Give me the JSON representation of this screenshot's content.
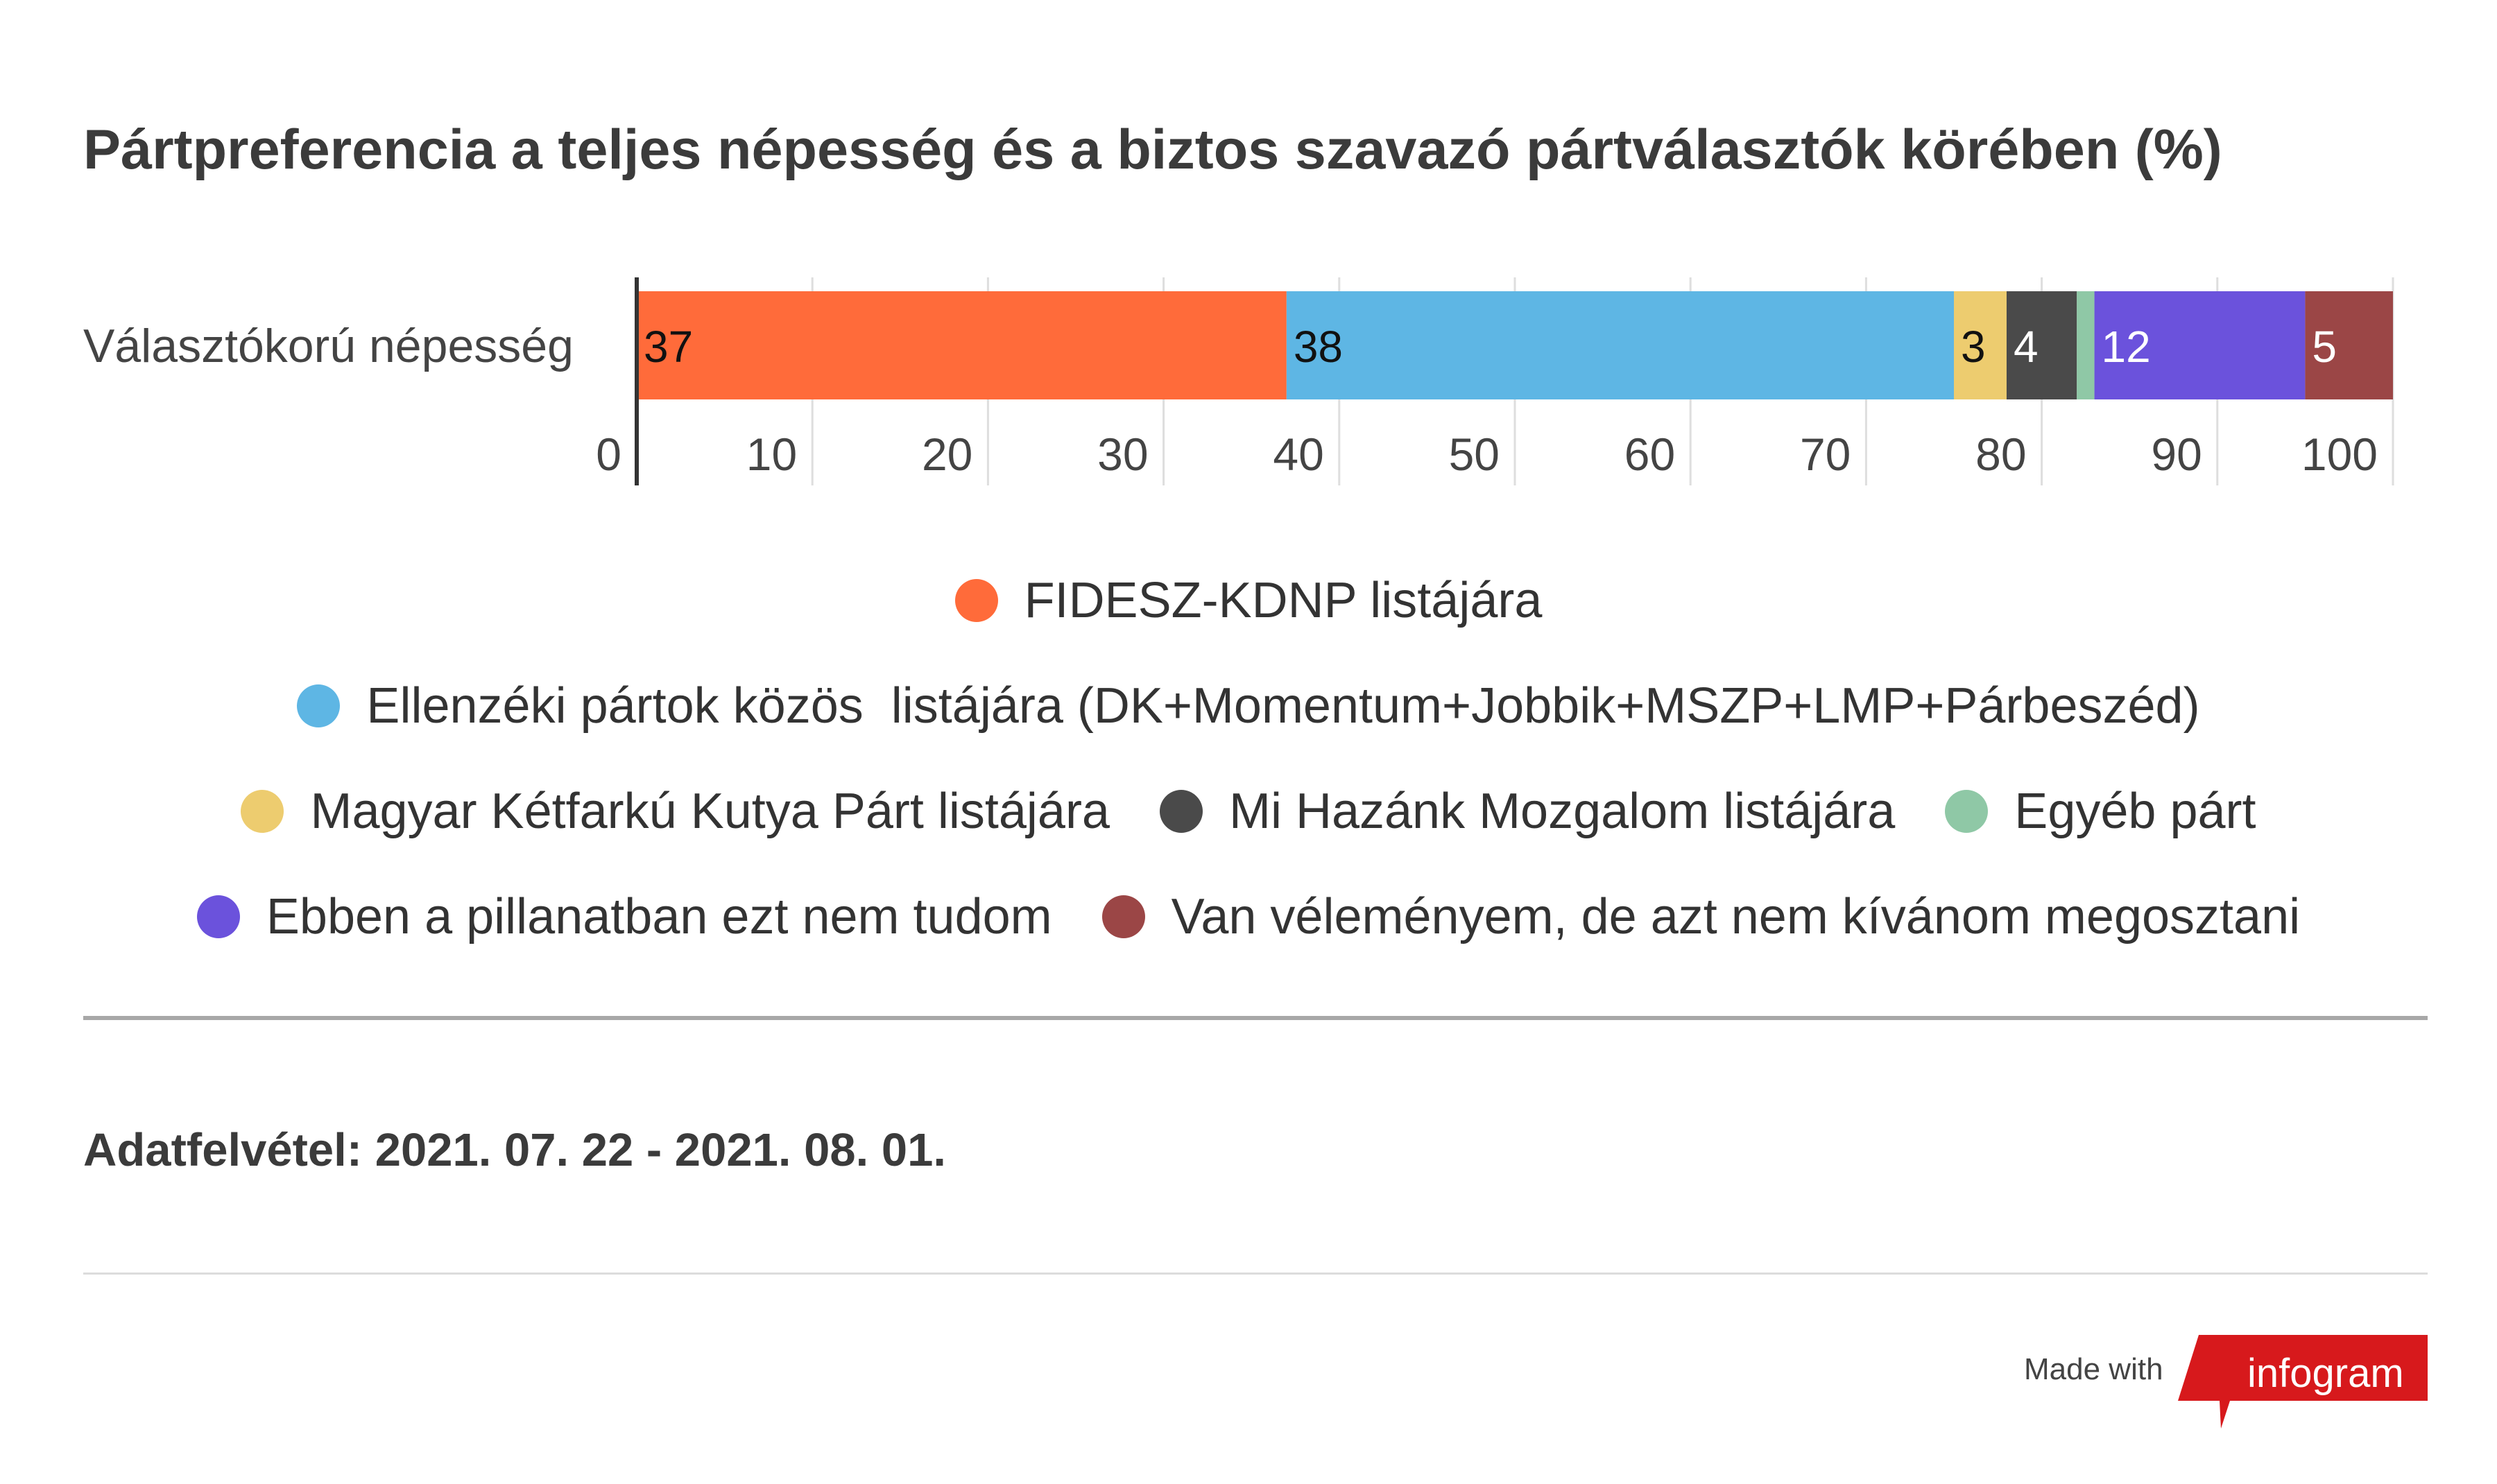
{
  "title": "Pártpreferencia a teljes népesség és a biztos szavazó pártválasztók körében (%)",
  "chart_data": {
    "type": "bar",
    "orientation": "horizontal",
    "stacked": true,
    "categories": [
      "Választókorú népesség"
    ],
    "xlim": [
      0,
      100
    ],
    "xticks": [
      "0",
      "10",
      "20",
      "30",
      "40",
      "50",
      "60",
      "70",
      "80",
      "90",
      "100"
    ],
    "grid": true,
    "legend_position": "bottom",
    "series": [
      {
        "name": "FIDESZ-KDNP listájára",
        "values": [
          37
        ],
        "label": "37",
        "color": "#ff6b3a",
        "label_color": "#111111"
      },
      {
        "name": "Ellenzéki pártok közös  listájára (DK+Momentum+Jobbik+MSZP+LMP+Párbeszéd)",
        "values": [
          38
        ],
        "label": "38",
        "color": "#5eb6e4",
        "label_color": "#111111"
      },
      {
        "name": "Magyar Kétfarkú Kutya Párt listájára",
        "values": [
          3
        ],
        "label": "3",
        "color": "#edcc6f",
        "label_color": "#111111"
      },
      {
        "name": "Mi Hazánk Mozgalom listájára",
        "values": [
          4
        ],
        "label": "4",
        "color": "#4a4a4a",
        "label_color": "#ffffff"
      },
      {
        "name": "Egyéb párt",
        "values": [
          1
        ],
        "label": "",
        "color": "#8fc8a6",
        "label_color": "#111111"
      },
      {
        "name": "Ebben a pillanatban ezt nem tudom",
        "values": [
          12
        ],
        "label": "12",
        "color": "#6b52dc",
        "label_color": "#ffffff"
      },
      {
        "name": "Van véleményem, de azt nem kívánom megosztani",
        "values": [
          5
        ],
        "label": "5",
        "color": "#9b4646",
        "label_color": "#ffffff"
      }
    ]
  },
  "footer": {
    "date_note": "Adatfelvétel: 2021. 07. 22 - 2021. 08. 01.",
    "made_with": "Made with",
    "brand": "infogram",
    "brand_color": "#d7191c"
  }
}
